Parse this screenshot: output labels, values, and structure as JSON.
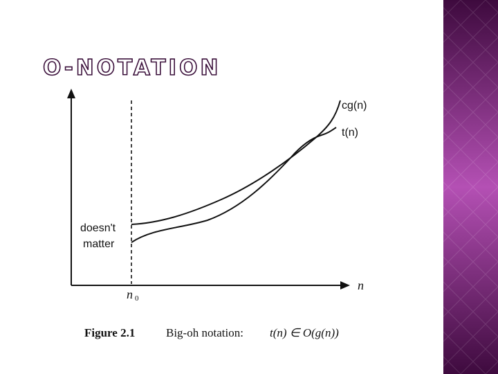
{
  "header": {
    "title": "O-NOTATION"
  },
  "diagram": {
    "curve_labels": [
      "cg(n)",
      "t(n)"
    ],
    "region_label": [
      "doesn't",
      "matter"
    ],
    "x_axis_label": "n",
    "threshold_label": {
      "main": "n",
      "subscript": "0"
    }
  },
  "caption": {
    "label": "Figure 2.1",
    "text": "Big-oh notation:",
    "formula": "t(n) ∈ O(g(n))"
  }
}
